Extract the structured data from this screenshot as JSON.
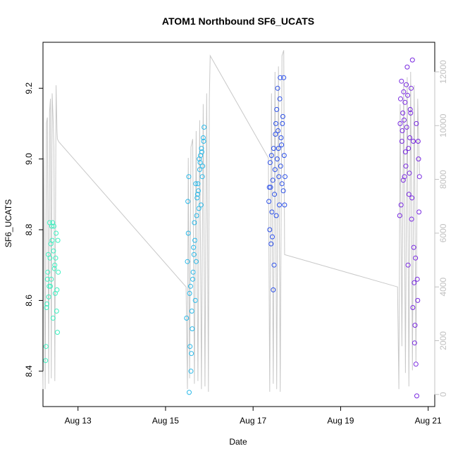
{
  "chart_data": {
    "type": "scatter",
    "title": "ATOM1 Northbound SF6_UCATS",
    "xlabel": "Date",
    "ylabel": "SF6_UCATS",
    "xlim": [
      12.2,
      21.15
    ],
    "ylim": [
      8.3,
      9.33
    ],
    "y2lim": [
      -450,
      13100
    ],
    "x_ticks": [
      13,
      15,
      17,
      19,
      21
    ],
    "x_tick_labels": [
      "Aug 13",
      "Aug 15",
      "Aug 17",
      "Aug 19",
      "Aug 21"
    ],
    "y_ticks": [
      8.4,
      8.6,
      8.8,
      9.0,
      9.2
    ],
    "y_tick_labels": [
      "8.4",
      "8.6",
      "8.8",
      "9.0",
      "9.2"
    ],
    "y2_ticks": [
      0,
      2000,
      4000,
      6000,
      8000,
      10000,
      12000
    ],
    "y2_tick_labels": [
      "0",
      "2000",
      "4000",
      "6000",
      "8000",
      "10000",
      "12000"
    ],
    "grid": false,
    "point_style": "open-circle",
    "line_color": "#c8c8c8",
    "colors": {
      "flight1": "#3cf0c0",
      "flight2": "#28b8e8",
      "flight3": "#2c50e8",
      "flight4": "#7828e0"
    },
    "altitude_series": {
      "name": "",
      "points": [
        [
          12.2,
          200
        ],
        [
          12.22,
          8800
        ],
        [
          12.25,
          200
        ],
        [
          12.28,
          10100
        ],
        [
          12.3,
          10300
        ],
        [
          12.33,
          400
        ],
        [
          12.35,
          10500
        ],
        [
          12.37,
          11000
        ],
        [
          12.39,
          600
        ],
        [
          12.41,
          11200
        ],
        [
          12.43,
          10300
        ],
        [
          12.45,
          9200
        ],
        [
          12.47,
          500
        ],
        [
          12.5,
          11500
        ],
        [
          12.52,
          9800
        ],
        [
          12.53,
          9500
        ],
        [
          12.56,
          9400
        ],
        [
          15.47,
          4000
        ],
        [
          15.5,
          200
        ],
        [
          15.52,
          8800
        ],
        [
          15.55,
          600
        ],
        [
          15.58,
          9200
        ],
        [
          15.62,
          9500
        ],
        [
          15.66,
          400
        ],
        [
          15.7,
          9800
        ],
        [
          15.74,
          500
        ],
        [
          15.78,
          10200
        ],
        [
          15.82,
          200
        ],
        [
          15.86,
          10800
        ],
        [
          15.9,
          300
        ],
        [
          15.94,
          11200
        ],
        [
          15.98,
          100
        ],
        [
          16.0,
          11000
        ],
        [
          16.02,
          12600
        ],
        [
          17.35,
          8800
        ],
        [
          17.38,
          100
        ],
        [
          17.42,
          11200
        ],
        [
          17.46,
          400
        ],
        [
          17.5,
          12000
        ],
        [
          17.54,
          200
        ],
        [
          17.58,
          12200
        ],
        [
          17.62,
          100
        ],
        [
          17.66,
          12600
        ],
        [
          17.7,
          12800
        ],
        [
          17.72,
          5200
        ],
        [
          20.3,
          4000
        ],
        [
          20.33,
          200
        ],
        [
          20.36,
          10800
        ],
        [
          20.4,
          1800
        ],
        [
          20.44,
          11600
        ],
        [
          20.48,
          800
        ],
        [
          20.52,
          11800
        ],
        [
          20.56,
          300
        ],
        [
          20.6,
          12000
        ],
        [
          20.64,
          900
        ],
        [
          20.68,
          11500
        ],
        [
          20.72,
          1200
        ],
        [
          20.76,
          11000
        ],
        [
          20.8,
          8200
        ]
      ]
    },
    "series": [
      {
        "name": "",
        "color_key": "flight1",
        "points": [
          [
            12.26,
            8.43
          ],
          [
            12.27,
            8.47
          ],
          [
            12.29,
            8.59
          ],
          [
            12.31,
            8.68
          ],
          [
            12.32,
            8.73
          ],
          [
            12.34,
            8.64
          ],
          [
            12.36,
            8.72
          ],
          [
            12.38,
            8.76
          ],
          [
            12.4,
            8.81
          ],
          [
            12.42,
            8.82
          ],
          [
            12.44,
            8.74
          ],
          [
            12.46,
            8.69
          ],
          [
            12.48,
            8.62
          ],
          [
            12.5,
            8.79
          ],
          [
            12.51,
            8.57
          ],
          [
            12.53,
            8.51
          ],
          [
            12.54,
            8.77
          ],
          [
            12.55,
            8.68
          ],
          [
            12.28,
            8.58
          ],
          [
            12.33,
            8.61
          ],
          [
            12.39,
            8.66
          ],
          [
            12.43,
            8.55
          ],
          [
            12.47,
            8.7
          ],
          [
            12.52,
            8.63
          ],
          [
            12.35,
            8.82
          ],
          [
            12.41,
            8.77
          ],
          [
            12.45,
            8.81
          ],
          [
            12.49,
            8.72
          ],
          [
            12.37,
            8.64
          ],
          [
            12.3,
            8.66
          ]
        ]
      },
      {
        "name": "",
        "color_key": "flight2",
        "points": [
          [
            15.48,
            8.55
          ],
          [
            15.5,
            8.71
          ],
          [
            15.52,
            8.79
          ],
          [
            15.54,
            8.34
          ],
          [
            15.56,
            8.47
          ],
          [
            15.58,
            8.4
          ],
          [
            15.6,
            8.57
          ],
          [
            15.62,
            8.66
          ],
          [
            15.64,
            8.75
          ],
          [
            15.66,
            8.82
          ],
          [
            15.68,
            8.6
          ],
          [
            15.7,
            8.71
          ],
          [
            15.72,
            8.89
          ],
          [
            15.74,
            8.93
          ],
          [
            15.76,
            8.86
          ],
          [
            15.78,
            8.97
          ],
          [
            15.8,
            9.01
          ],
          [
            15.82,
            9.03
          ],
          [
            15.84,
            8.95
          ],
          [
            15.86,
            9.06
          ],
          [
            15.88,
            9.09
          ],
          [
            15.51,
            8.88
          ],
          [
            15.53,
            8.95
          ],
          [
            15.57,
            8.64
          ],
          [
            15.61,
            8.52
          ],
          [
            15.63,
            8.68
          ],
          [
            15.67,
            8.77
          ],
          [
            15.71,
            8.84
          ],
          [
            15.75,
            8.91
          ],
          [
            15.79,
            8.99
          ],
          [
            15.83,
            9.02
          ],
          [
            15.55,
            8.62
          ],
          [
            15.59,
            8.45
          ],
          [
            15.65,
            8.73
          ],
          [
            15.69,
            8.93
          ],
          [
            15.73,
            8.9
          ],
          [
            15.77,
            9.0
          ],
          [
            15.81,
            8.87
          ],
          [
            15.85,
            8.98
          ],
          [
            15.87,
            9.05
          ]
        ]
      },
      {
        "name": "",
        "color_key": "flight3",
        "points": [
          [
            17.36,
            8.88
          ],
          [
            17.38,
            8.8
          ],
          [
            17.4,
            8.92
          ],
          [
            17.42,
            9.01
          ],
          [
            17.44,
            8.78
          ],
          [
            17.46,
            8.63
          ],
          [
            17.48,
            8.7
          ],
          [
            17.5,
            8.97
          ],
          [
            17.52,
            9.1
          ],
          [
            17.54,
            9.14
          ],
          [
            17.56,
            9.2
          ],
          [
            17.58,
            9.03
          ],
          [
            17.6,
            8.87
          ],
          [
            17.62,
            9.23
          ],
          [
            17.64,
            9.06
          ],
          [
            17.66,
            8.93
          ],
          [
            17.68,
            9.12
          ],
          [
            17.7,
            9.23
          ],
          [
            17.72,
            8.87
          ],
          [
            17.37,
            8.92
          ],
          [
            17.39,
            8.99
          ],
          [
            17.41,
            8.76
          ],
          [
            17.43,
            8.85
          ],
          [
            17.45,
            8.94
          ],
          [
            17.47,
            9.03
          ],
          [
            17.49,
            8.9
          ],
          [
            17.51,
            9.07
          ],
          [
            17.53,
            8.84
          ],
          [
            17.55,
            9.0
          ],
          [
            17.57,
            9.08
          ],
          [
            17.59,
            8.95
          ],
          [
            17.61,
            9.17
          ],
          [
            17.63,
            8.98
          ],
          [
            17.65,
            9.04
          ],
          [
            17.67,
            9.1
          ],
          [
            17.69,
            8.91
          ],
          [
            17.71,
            9.01
          ],
          [
            17.73,
            8.95
          ]
        ]
      },
      {
        "name": "",
        "color_key": "flight4",
        "points": [
          [
            20.36,
            9.1
          ],
          [
            20.38,
            8.87
          ],
          [
            20.4,
            9.05
          ],
          [
            20.42,
            9.13
          ],
          [
            20.44,
            9.19
          ],
          [
            20.46,
            8.95
          ],
          [
            20.48,
            9.02
          ],
          [
            20.5,
            9.21
          ],
          [
            20.52,
            9.26
          ],
          [
            20.54,
            8.7
          ],
          [
            20.56,
            8.9
          ],
          [
            20.58,
            9.06
          ],
          [
            20.6,
            9.13
          ],
          [
            20.62,
            8.83
          ],
          [
            20.64,
            9.28
          ],
          [
            20.66,
            9.05
          ],
          [
            20.68,
            8.65
          ],
          [
            20.7,
            8.53
          ],
          [
            20.72,
            8.42
          ],
          [
            20.74,
            8.33
          ],
          [
            20.76,
            8.6
          ],
          [
            20.78,
            9.0
          ],
          [
            20.8,
            8.95
          ],
          [
            20.39,
            9.22
          ],
          [
            20.41,
            9.08
          ],
          [
            20.43,
            8.94
          ],
          [
            20.45,
            9.11
          ],
          [
            20.47,
            9.16
          ],
          [
            20.49,
            8.98
          ],
          [
            20.51,
            9.09
          ],
          [
            20.53,
            9.18
          ],
          [
            20.55,
            9.03
          ],
          [
            20.57,
            8.96
          ],
          [
            20.59,
            9.14
          ],
          [
            20.61,
            9.2
          ],
          [
            20.63,
            8.89
          ],
          [
            20.65,
            8.58
          ],
          [
            20.67,
            8.75
          ],
          [
            20.69,
            8.48
          ],
          [
            20.71,
            8.72
          ],
          [
            20.73,
            9.1
          ],
          [
            20.75,
            8.66
          ],
          [
            20.77,
            9.05
          ],
          [
            20.79,
            8.85
          ],
          [
            20.37,
            9.17
          ],
          [
            20.35,
            8.84
          ]
        ]
      }
    ]
  }
}
